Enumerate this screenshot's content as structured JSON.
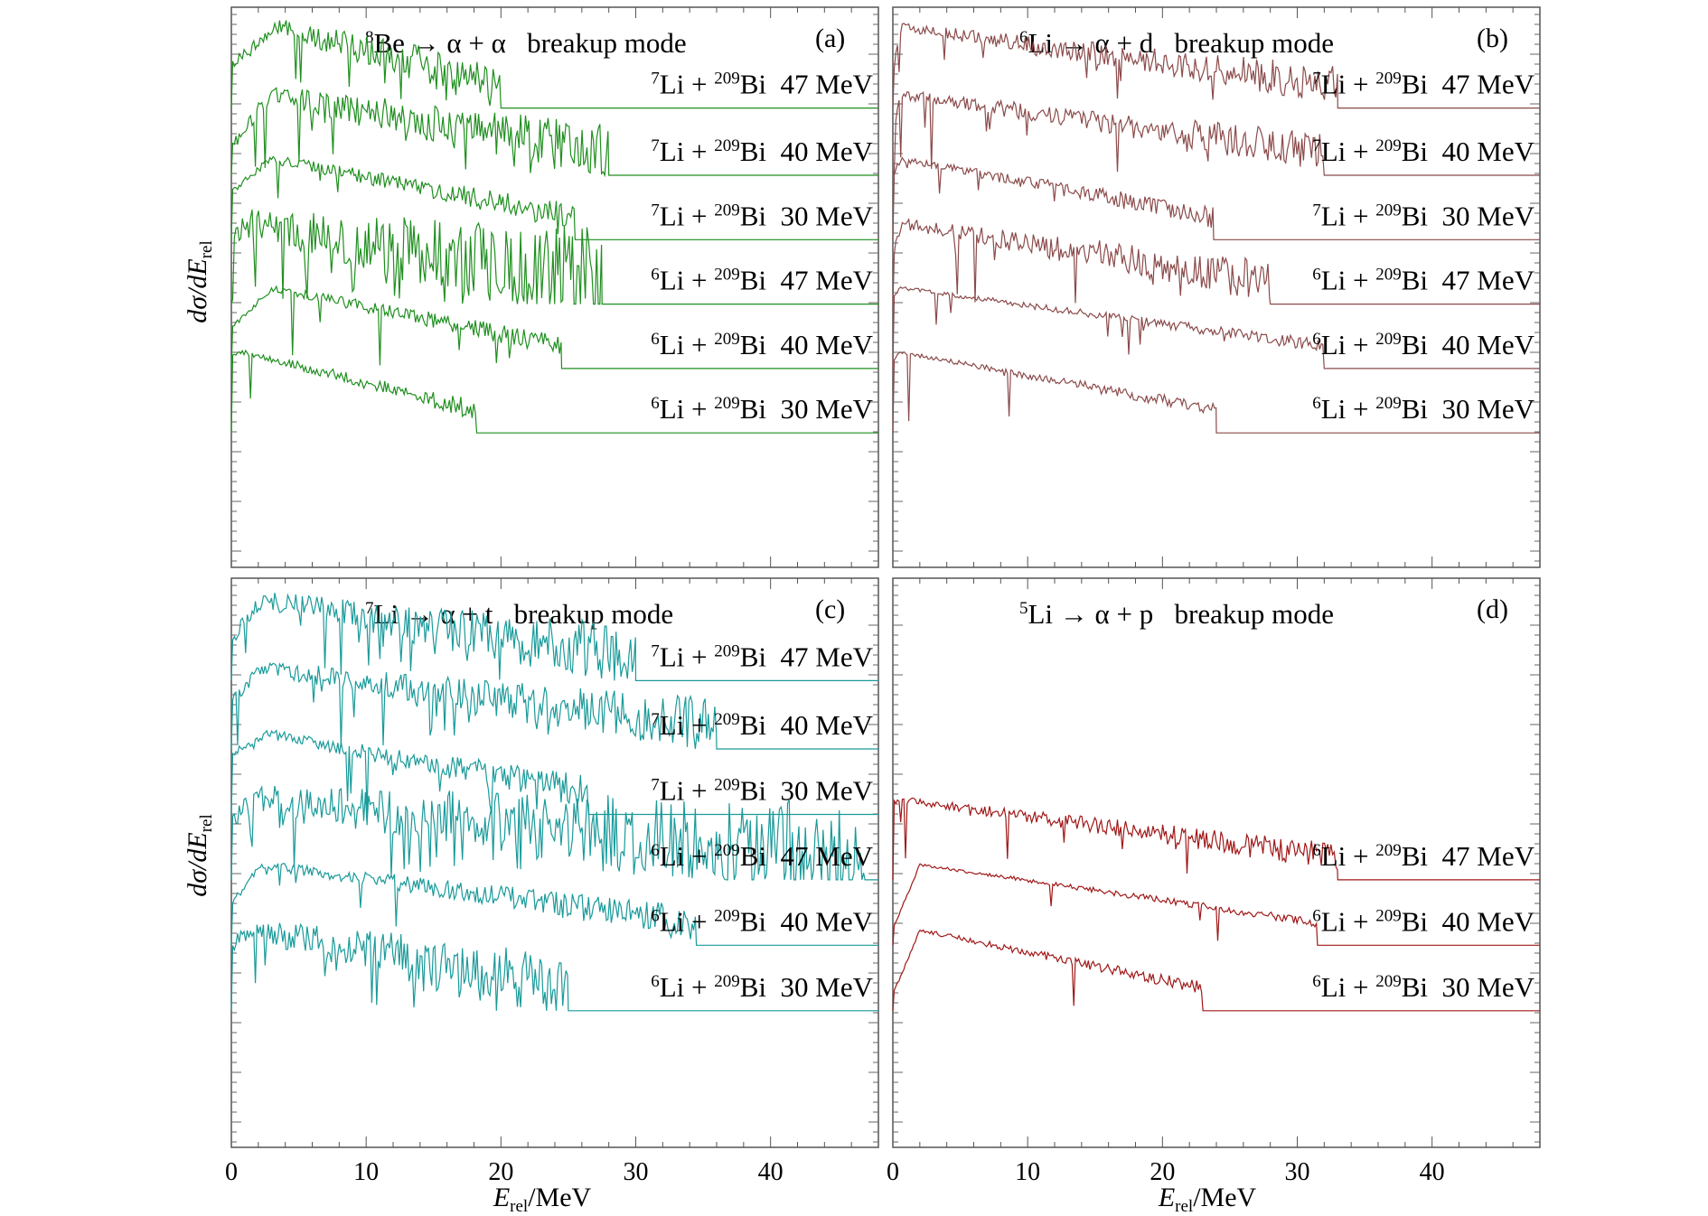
{
  "figure": {
    "ylabel": "dσ/dE",
    "ylabel_sub": "rel",
    "xlabel_main": "E",
    "xlabel_sub": "rel",
    "xlabel_unit": "/MeV"
  },
  "chart_data": [
    {
      "panel": "(a)",
      "type": "line",
      "title_prefix": "8",
      "title_nucleus": "Be",
      "title_reaction": "→ α + α",
      "title_suffix": "breakup mode",
      "color": "#1f8f1f",
      "xlim": [
        0,
        48
      ],
      "xticks": [
        0,
        10,
        20,
        30,
        40
      ],
      "series": [
        {
          "projectile_mass": "7",
          "projectile": "Li",
          "target_mass": "209",
          "target": "Bi",
          "energy": "47 MeV",
          "cutoff": 20,
          "peak_x": 3.5,
          "noise": 0.45,
          "start_level": 0.55
        },
        {
          "projectile_mass": "7",
          "projectile": "Li",
          "target_mass": "209",
          "target": "Bi",
          "energy": "40 MeV",
          "cutoff": 28,
          "peak_x": 2.8,
          "noise": 0.55,
          "start_level": 0.35
        },
        {
          "projectile_mass": "7",
          "projectile": "Li",
          "target_mass": "209",
          "target": "Bi",
          "energy": "30 MeV",
          "cutoff": 25.5,
          "peak_x": 3,
          "noise": 0.25,
          "start_level": 0.6
        },
        {
          "projectile_mass": "6",
          "projectile": "Li",
          "target_mass": "209",
          "target": "Bi",
          "energy": "47 MeV",
          "cutoff": 27.5,
          "peak_x": 1.5,
          "noise": 1.0,
          "start_level": 0.9
        },
        {
          "projectile_mass": "6",
          "projectile": "Li",
          "target_mass": "209",
          "target": "Bi",
          "energy": "40 MeV",
          "cutoff": 24.5,
          "peak_x": 3,
          "noise": 0.2,
          "start_level": 0.5
        },
        {
          "projectile_mass": "6",
          "projectile": "Li",
          "target_mass": "209",
          "target": "Bi",
          "energy": "30 MeV",
          "cutoff": 18.2,
          "peak_x": 1,
          "noise": 0.18,
          "start_level": 0.95
        }
      ]
    },
    {
      "panel": "(b)",
      "type": "line",
      "title_prefix": "6",
      "title_nucleus": "Li",
      "title_reaction": "→ α + d",
      "title_suffix": "breakup mode",
      "color": "#8b4a4a",
      "xlim": [
        0,
        48
      ],
      "xticks": [
        0,
        10,
        20,
        30,
        40
      ],
      "series": [
        {
          "projectile_mass": "7",
          "projectile": "Li",
          "target_mass": "209",
          "target": "Bi",
          "energy": "47 MeV",
          "cutoff": 33,
          "peak_x": 0.6,
          "noise": 0.35,
          "start_level": 0.45
        },
        {
          "projectile_mass": "7",
          "projectile": "Li",
          "target_mass": "209",
          "target": "Bi",
          "energy": "40 MeV",
          "cutoff": 32,
          "peak_x": 0.6,
          "noise": 0.35,
          "start_level": 0.5
        },
        {
          "projectile_mass": "7",
          "projectile": "Li",
          "target_mass": "209",
          "target": "Bi",
          "energy": "30 MeV",
          "cutoff": 23.8,
          "peak_x": 0.6,
          "noise": 0.2,
          "start_level": 0.8
        },
        {
          "projectile_mass": "6",
          "projectile": "Li",
          "target_mass": "209",
          "target": "Bi",
          "energy": "47 MeV",
          "cutoff": 28,
          "peak_x": 0.6,
          "noise": 0.4,
          "start_level": 0.6
        },
        {
          "projectile_mass": "6",
          "projectile": "Li",
          "target_mass": "209",
          "target": "Bi",
          "energy": "40 MeV",
          "cutoff": 32,
          "peak_x": 0.6,
          "noise": 0.12,
          "start_level": 0.9
        },
        {
          "projectile_mass": "6",
          "projectile": "Li",
          "target_mass": "209",
          "target": "Bi",
          "energy": "30 MeV",
          "cutoff": 24,
          "peak_x": 0.6,
          "noise": 0.12,
          "start_level": 0.9
        }
      ]
    },
    {
      "panel": "(c)",
      "type": "line",
      "title_prefix": "7",
      "title_nucleus": "Li",
      "title_reaction": "→ α + t",
      "title_suffix": "breakup mode",
      "color": "#1a9a9a",
      "xlim": [
        0,
        48
      ],
      "xticks": [
        0,
        10,
        20,
        30,
        40
      ],
      "series": [
        {
          "projectile_mass": "7",
          "projectile": "Li",
          "target_mass": "209",
          "target": "Bi",
          "energy": "47 MeV",
          "cutoff": 30,
          "peak_x": 2.2,
          "noise": 0.6,
          "start_level": 0.5
        },
        {
          "projectile_mass": "7",
          "projectile": "Li",
          "target_mass": "209",
          "target": "Bi",
          "energy": "40 MeV",
          "cutoff": 36,
          "peak_x": 2.2,
          "noise": 0.5,
          "start_level": 0.6
        },
        {
          "projectile_mass": "7",
          "projectile": "Li",
          "target_mass": "209",
          "target": "Bi",
          "energy": "30 MeV",
          "cutoff": 26.5,
          "peak_x": 2.5,
          "noise": 0.3,
          "start_level": 0.75
        },
        {
          "projectile_mass": "6",
          "projectile": "Li",
          "target_mass": "209",
          "target": "Bi",
          "energy": "47 MeV",
          "cutoff": 47,
          "peak_x": 2.2,
          "noise": 1.0,
          "start_level": 0.8
        },
        {
          "projectile_mass": "6",
          "projectile": "Li",
          "target_mass": "209",
          "target": "Bi",
          "energy": "40 MeV",
          "cutoff": 34.5,
          "peak_x": 2.2,
          "noise": 0.3,
          "start_level": 0.5
        },
        {
          "projectile_mass": "6",
          "projectile": "Li",
          "target_mass": "209",
          "target": "Bi",
          "energy": "30 MeV",
          "cutoff": 25,
          "peak_x": 1.5,
          "noise": 0.7,
          "start_level": 0.8
        }
      ]
    },
    {
      "panel": "(d)",
      "type": "line",
      "title_prefix": "5",
      "title_nucleus": "Li",
      "title_reaction": "→ α + p",
      "title_suffix": "breakup mode",
      "color": "#a01818",
      "xlim": [
        0,
        48
      ],
      "xticks": [
        0,
        10,
        20,
        30,
        40
      ],
      "series": [
        {
          "projectile_mass": "6",
          "projectile": "Li",
          "target_mass": "209",
          "target": "Bi",
          "energy": "47 MeV",
          "cutoff": 33,
          "peak_x": 0.5,
          "noise": 0.25,
          "start_level": 0.95,
          "slot": 3
        },
        {
          "projectile_mass": "6",
          "projectile": "Li",
          "target_mass": "209",
          "target": "Bi",
          "energy": "40 MeV",
          "cutoff": 31.5,
          "peak_x": 2,
          "noise": 0.08,
          "start_level": 0.2,
          "slot": 4
        },
        {
          "projectile_mass": "6",
          "projectile": "Li",
          "target_mass": "209",
          "target": "Bi",
          "energy": "30 MeV",
          "cutoff": 23,
          "peak_x": 2,
          "noise": 0.12,
          "start_level": 0.2,
          "slot": 5
        }
      ]
    }
  ]
}
